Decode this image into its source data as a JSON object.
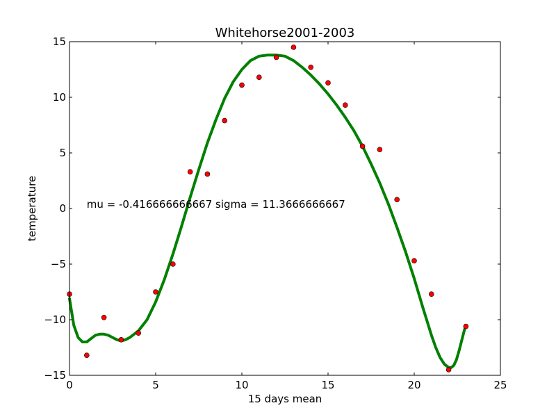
{
  "chart_data": {
    "type": "scatter",
    "title": "Whitehorse2001-2003",
    "xlabel": "15 days mean",
    "ylabel": "temperature",
    "xlim": [
      0,
      25
    ],
    "ylim": [
      -15,
      15
    ],
    "xticks": [
      0,
      5,
      10,
      15,
      20,
      25
    ],
    "yticks": [
      -15,
      -10,
      -5,
      0,
      5,
      10,
      15
    ],
    "xtick_labels": [
      "0",
      "5",
      "10",
      "15",
      "20",
      "25"
    ],
    "ytick_labels": [
      "−15",
      "−10",
      "−5",
      "0",
      "5",
      "10",
      "15"
    ],
    "grid": false,
    "annotation": "mu = -0.416666666667 sigma = 11.3666666667",
    "annotation_x": 1,
    "annotation_y": 0.3,
    "series": [
      {
        "kind": "points",
        "color": "#ff0000",
        "x": [
          0,
          1,
          2,
          3,
          4,
          5,
          6,
          7,
          8,
          9,
          10,
          11,
          12,
          13,
          14,
          15,
          16,
          17,
          18,
          19,
          20,
          21,
          22,
          23
        ],
        "y": [
          -7.7,
          -13.2,
          -9.8,
          -11.8,
          -11.2,
          -7.5,
          -5.0,
          3.3,
          3.1,
          7.9,
          11.1,
          11.8,
          13.6,
          14.5,
          12.7,
          11.3,
          9.3,
          5.6,
          5.3,
          0.8,
          -4.7,
          -7.7,
          -14.5,
          -10.6
        ]
      },
      {
        "kind": "smooth-curve",
        "color": "#008000",
        "x": [
          0,
          0.25,
          0.5,
          0.75,
          1,
          1.25,
          1.5,
          1.75,
          2,
          2.25,
          2.5,
          2.75,
          3,
          3.25,
          3.5,
          3.75,
          4,
          4.5,
          5,
          5.5,
          6,
          6.5,
          7,
          7.5,
          8,
          8.5,
          9,
          9.5,
          10,
          10.5,
          11,
          11.5,
          12,
          12.5,
          13,
          13.5,
          14,
          14.5,
          15,
          15.5,
          16,
          16.5,
          17,
          17.5,
          18,
          18.5,
          19,
          19.5,
          20,
          20.5,
          21,
          21.25,
          21.5,
          21.75,
          22,
          22.15,
          22.3,
          22.45,
          22.6,
          22.75,
          22.9,
          23
        ],
        "y": [
          -8.1,
          -10.5,
          -11.6,
          -12.0,
          -12.0,
          -11.7,
          -11.4,
          -11.3,
          -11.3,
          -11.4,
          -11.6,
          -11.8,
          -11.9,
          -11.8,
          -11.6,
          -11.3,
          -11.0,
          -10.0,
          -8.4,
          -6.4,
          -4.1,
          -1.6,
          1.0,
          3.5,
          5.9,
          8.0,
          9.9,
          11.4,
          12.5,
          13.3,
          13.7,
          13.8,
          13.8,
          13.7,
          13.3,
          12.7,
          12.0,
          11.2,
          10.3,
          9.3,
          8.2,
          7.0,
          5.6,
          4.0,
          2.3,
          0.4,
          -1.7,
          -3.9,
          -6.3,
          -8.9,
          -11.4,
          -12.5,
          -13.4,
          -14.0,
          -14.3,
          -14.3,
          -14.1,
          -13.6,
          -12.8,
          -11.9,
          -11.0,
          -10.5
        ]
      }
    ]
  }
}
